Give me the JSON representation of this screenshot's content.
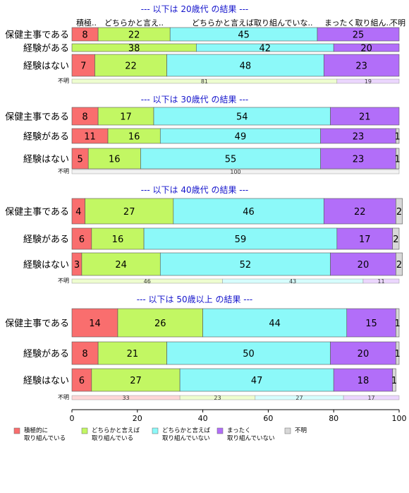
{
  "colors": [
    "#f96e6e",
    "#c2f763",
    "#8cf9f9",
    "#b26ef9",
    "#d8d8d8"
  ],
  "legend": [
    "積極的に\n取り組んでいる",
    "どちらかと言えば\n取り組んでいる",
    "どちらかと言えば\n取り組んでいない",
    "まったく\n取り組んでいない",
    "不明"
  ],
  "chart_data": {
    "type": "bar",
    "orientation": "horizontal",
    "stacked": true,
    "percent": true,
    "column_headers": [
      "積極..",
      "どちらかと言え..",
      "どちらかと言えば取り組んでいな..",
      "まったく取り組ん..",
      "不明"
    ],
    "xlim": [
      0,
      100
    ],
    "xticks": [
      0,
      20,
      40,
      60,
      80,
      100
    ],
    "grid": false,
    "legend_position": "bottom",
    "panels": [
      {
        "title": "--- 以下は 20歳代 の結果 ---",
        "rows": [
          {
            "label": "保健主事である",
            "values": [
              8,
              22,
              45,
              25,
              0
            ]
          },
          {
            "label": "経験がある",
            "values": [
              0,
              38,
              42,
              20,
              0
            ]
          },
          {
            "label": "経験はない",
            "values": [
              7,
              22,
              48,
              23,
              0
            ]
          }
        ],
        "unknown": {
          "label": "不明",
          "values": [
            0,
            81,
            0,
            19,
            0
          ]
        }
      },
      {
        "title": "--- 以下は 30歳代 の結果 ---",
        "rows": [
          {
            "label": "保健主事である",
            "values": [
              8,
              17,
              54,
              21,
              0
            ]
          },
          {
            "label": "経験がある",
            "values": [
              11,
              16,
              49,
              23,
              1
            ]
          },
          {
            "label": "経験はない",
            "values": [
              5,
              16,
              55,
              23,
              1
            ]
          }
        ],
        "unknown": {
          "label": "不明",
          "values": [
            0,
            0,
            0,
            0,
            100
          ]
        }
      },
      {
        "title": "--- 以下は 40歳代 の結果 ---",
        "rows": [
          {
            "label": "保健主事である",
            "values": [
              4,
              27,
              46,
              22,
              2
            ]
          },
          {
            "label": "経験がある",
            "values": [
              6,
              16,
              59,
              17,
              2
            ]
          },
          {
            "label": "経験はない",
            "values": [
              3,
              24,
              52,
              20,
              2
            ]
          }
        ],
        "unknown": {
          "label": "不明",
          "values": [
            0,
            46,
            43,
            11,
            0
          ]
        }
      },
      {
        "title": "--- 以下は 50歳以上 の結果 ---",
        "rows": [
          {
            "label": "保健主事である",
            "values": [
              14,
              26,
              44,
              15,
              1
            ]
          },
          {
            "label": "経験がある",
            "values": [
              8,
              21,
              50,
              20,
              1
            ]
          },
          {
            "label": "経験はない",
            "values": [
              6,
              27,
              47,
              18,
              1
            ]
          }
        ],
        "unknown": {
          "label": "不明",
          "values": [
            33,
            23,
            27,
            17,
            0
          ]
        }
      }
    ]
  }
}
